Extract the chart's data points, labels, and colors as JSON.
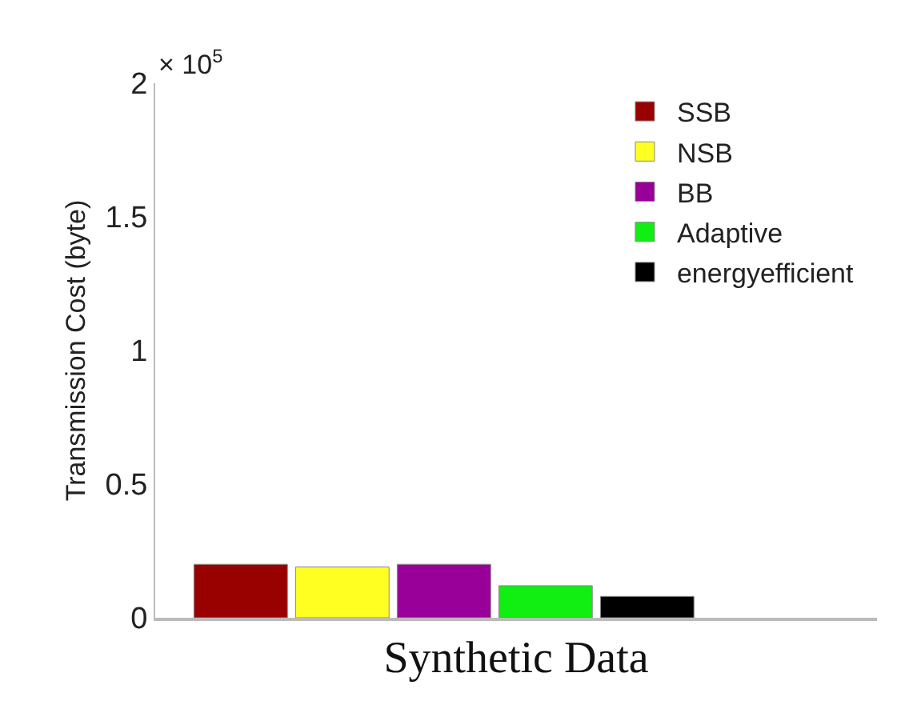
{
  "chart_data": {
    "type": "bar",
    "categories": [
      null
    ],
    "series": [
      {
        "name": "SSB",
        "color": "#990000",
        "values": [
          0.2
        ]
      },
      {
        "name": "NSB",
        "color": "#ffff22",
        "values": [
          0.19
        ]
      },
      {
        "name": "BB",
        "color": "#990099",
        "values": [
          0.2
        ]
      },
      {
        "name": "Adaptive",
        "color": "#11ee11",
        "values": [
          0.12
        ]
      },
      {
        "name": "energyefficient",
        "color": "#000000",
        "values": [
          0.08
        ]
      }
    ],
    "xlabel": "Synthetic Data",
    "ylabel": "Transmission Cost (byte)",
    "annotations": [
      "× 10$^{5}$"
    ],
    "ylim": [
      0,
      2
    ],
    "yticks": [
      0,
      0.5,
      1,
      1.5,
      2
    ],
    "grid": false,
    "legend": "top right"
  }
}
